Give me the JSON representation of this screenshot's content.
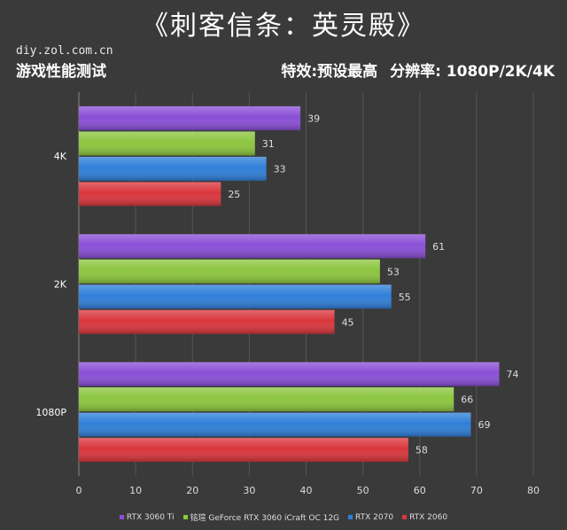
{
  "header": {
    "title": "《刺客信条：英灵殿》",
    "site": "diy.zol.com.cn",
    "subtitle": "游戏性能测试",
    "effects": "特效:预设最高",
    "resolution": "分辨率: 1080P/2K/4K"
  },
  "chart_data": {
    "type": "bar",
    "orientation": "horizontal",
    "categories": [
      "4K",
      "2K",
      "1080P"
    ],
    "series": [
      {
        "name": "RTX 3060 Ti",
        "color": "#8a4fd6",
        "values": [
          39,
          61,
          74
        ]
      },
      {
        "name": "铭瑄 GeForce RTX 3060 iCraft OC 12G",
        "color": "#8cc63f",
        "values": [
          31,
          53,
          66
        ]
      },
      {
        "name": "RTX 2070",
        "color": "#2f7fd8",
        "values": [
          33,
          55,
          69
        ]
      },
      {
        "name": "RTX 2060",
        "color": "#d9363c",
        "values": [
          25,
          45,
          58
        ]
      }
    ],
    "xlim": [
      0,
      80
    ],
    "xticks": [
      0,
      10,
      20,
      30,
      40,
      50,
      60,
      70,
      80
    ],
    "grid": true,
    "legend_position": "bottom"
  }
}
